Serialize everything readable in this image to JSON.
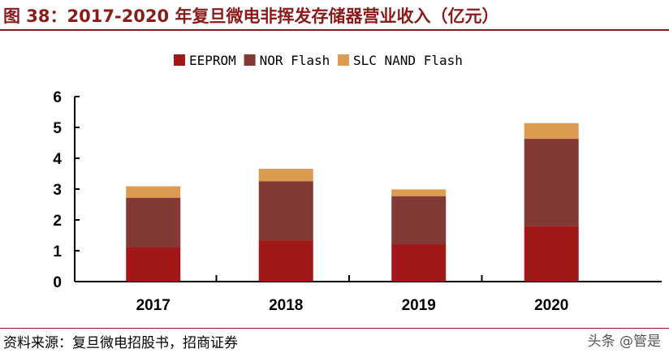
{
  "title": "图 38：2017-2020 年复旦微电非挥发存储器营业收入（亿元）",
  "source": "资料来源：复旦微电招股书，招商证券",
  "watermark": "头条 @管是",
  "chart_data": {
    "type": "bar",
    "stacked": true,
    "categories": [
      "2017",
      "2018",
      "2019",
      "2020"
    ],
    "series": [
      {
        "name": "EEPROM",
        "color": "#a01818",
        "values": [
          1.12,
          1.33,
          1.21,
          1.81
        ]
      },
      {
        "name": "NOR Flash",
        "color": "#833a36",
        "values": [
          1.6,
          1.92,
          1.56,
          2.82
        ]
      },
      {
        "name": "SLC NAND Flash",
        "color": "#dd9b52",
        "values": [
          0.37,
          0.41,
          0.22,
          0.51
        ]
      }
    ],
    "ylim": [
      0,
      6
    ],
    "yticks": [
      "0",
      "1",
      "2",
      "3",
      "4",
      "5",
      "6"
    ],
    "legend": "top",
    "grid": false
  }
}
